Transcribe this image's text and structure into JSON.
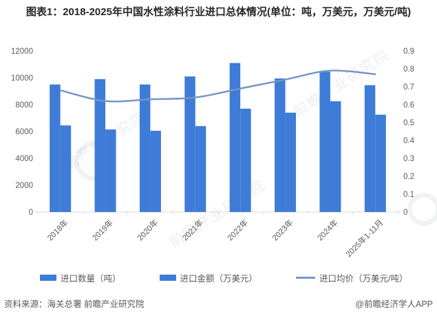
{
  "title": "图表1：2018-2025年中国水性涂料行业进口总体情况(单位：吨，万美元，万美元/吨)",
  "source": "资料来源：海关总署 前瞻产业研究院",
  "credit": "@前瞻经济学人APP",
  "watermark": "前瞻产业研究院",
  "colors": {
    "bar1": "#3E7CD8",
    "bar2": "#3E7CD8",
    "line": "#7496C6",
    "axis_text": "#595959",
    "baseline": "#D8D8D8",
    "title_text": "#262626"
  },
  "chart_data": {
    "type": "bar",
    "subtype": "grouped-bars-with-line",
    "categories": [
      "2018年",
      "2019年",
      "2020年",
      "2021年",
      "2022年",
      "2023年",
      "2024年",
      "2025年1-11月"
    ],
    "series": [
      {
        "name": "进口数量（吨）",
        "type": "bar",
        "axis": "left",
        "values": [
          9500,
          9900,
          9500,
          10100,
          11100,
          9950,
          10450,
          9450
        ]
      },
      {
        "name": "进口金额（万美元）",
        "type": "bar",
        "axis": "left",
        "values": [
          6450,
          6150,
          6050,
          6400,
          7700,
          7400,
          8250,
          7250
        ]
      },
      {
        "name": "进口均价（万美元/吨）",
        "type": "line",
        "axis": "right",
        "values": [
          0.68,
          0.62,
          0.63,
          0.64,
          0.69,
          0.74,
          0.79,
          0.77
        ]
      }
    ],
    "left_axis": {
      "min": 0,
      "max": 12000,
      "step": 2000
    },
    "right_axis": {
      "min": 0,
      "max": 0.9,
      "step": 0.1
    },
    "grid": false,
    "legend_position": "bottom"
  }
}
